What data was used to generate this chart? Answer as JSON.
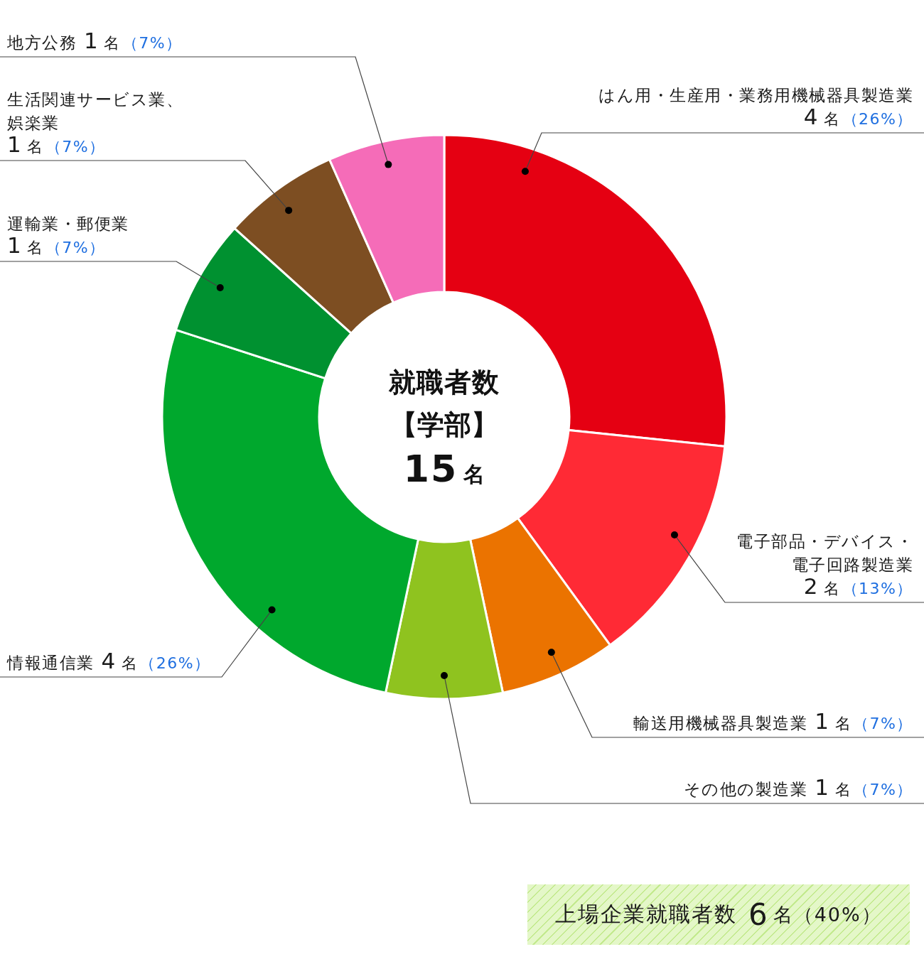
{
  "chart_data": {
    "type": "donut",
    "title": "就職者数",
    "subtitle": "【学部】",
    "categories": [
      "はん用・生産用・業務用機械器具製造業",
      "電子部品・デバイス・電子回路製造業",
      "輸送用機械器具製造業",
      "その他の製造業",
      "情報通信業",
      "運輸業・郵便業",
      "生活関連サービス業、娯楽業",
      "地方公務"
    ],
    "values": [
      4,
      2,
      1,
      1,
      4,
      1,
      1,
      1
    ],
    "colors": [
      "#e50012",
      "#ff2a35",
      "#eb7300",
      "#8fc31f",
      "#00a82d",
      "#009130",
      "#7d4e22",
      "#f56cb8"
    ],
    "value_labels": [
      "4名（26%）",
      "2名（13%）",
      "1名（7%）",
      "1名（7%）",
      "4名（26%）",
      "1名（7%）",
      "1名（7%）",
      "1名（7%）"
    ],
    "annotations": [
      "15名",
      "上場企業就職者数 6名（40%）"
    ]
  }
}
